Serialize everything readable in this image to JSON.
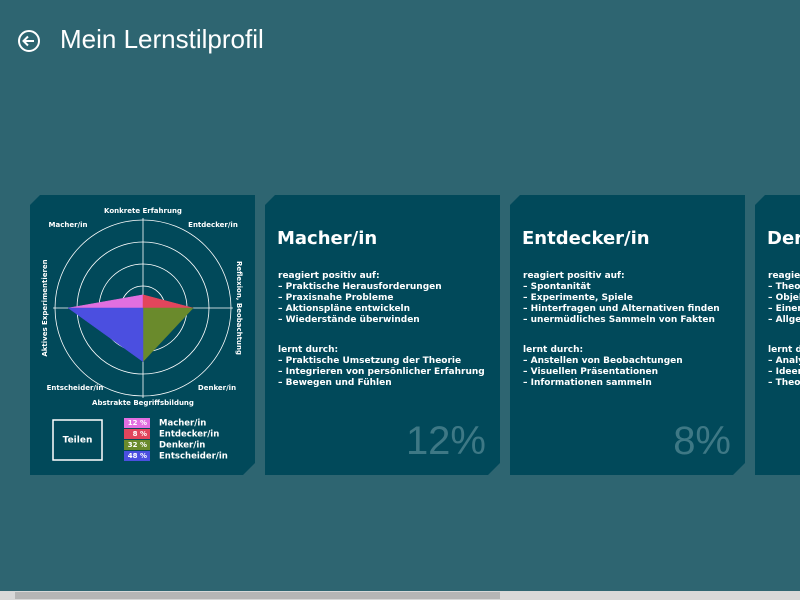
{
  "header": {
    "title": "Mein Lernstilprofil"
  },
  "chart_data": {
    "type": "radar",
    "axes": [
      "Konkrete Erfahrung",
      "Reflexion, Beobachtung",
      "Abstrakte Begriffsbildung",
      "Aktives Experimentieren"
    ],
    "axis_values": [
      15,
      57,
      61,
      85
    ],
    "rlim": [
      0,
      100
    ],
    "categories": [
      "Macher/in",
      "Entdecker/in",
      "Denker/in",
      "Entscheider/in"
    ],
    "colors": [
      "#e26fe0",
      "#e2455c",
      "#6a8a2c",
      "#4b4fe0"
    ],
    "values": [
      12,
      8,
      32,
      48
    ],
    "value_labels": [
      "12 %",
      "8 %",
      "32 %",
      "48 %"
    ]
  },
  "share_button": "Teilen",
  "cards": [
    {
      "title": "Macher/in",
      "positive_heading": "reagiert positiv auf:",
      "positive": [
        "– Praktische Herausforderungen",
        "– Praxisnahe Probleme",
        "– Aktionspläne entwickeln",
        "– Wiederstände überwinden"
      ],
      "learn_heading": "lernt durch:",
      "learn": [
        "– Praktische Umsetzung der Theorie",
        "– Integrieren von persönlicher Erfahrung",
        "– Bewegen und Fühlen"
      ],
      "percent": "12%"
    },
    {
      "title": "Entdecker/in",
      "positive_heading": "reagiert positiv auf:",
      "positive": [
        "– Spontanität",
        "– Experimente, Spiele",
        "– Hinterfragen und Alternativen finden",
        "– unermüdliches Sammeln von Fakten"
      ],
      "learn_heading": "lernt durch:",
      "learn": [
        "– Anstellen von Beobachtungen",
        "– Visuellen Präsentationen",
        "– Informationen sammeln"
      ],
      "percent": "8%"
    },
    {
      "title": "Der",
      "positive_heading": "reagiert",
      "positive": [
        "– Theor",
        "– Objek",
        "– Einer S",
        "– Allger"
      ],
      "learn_heading": "lernt durch:",
      "learn": [
        "– Analy",
        "– Ideen",
        "– Theori"
      ]
    }
  ]
}
